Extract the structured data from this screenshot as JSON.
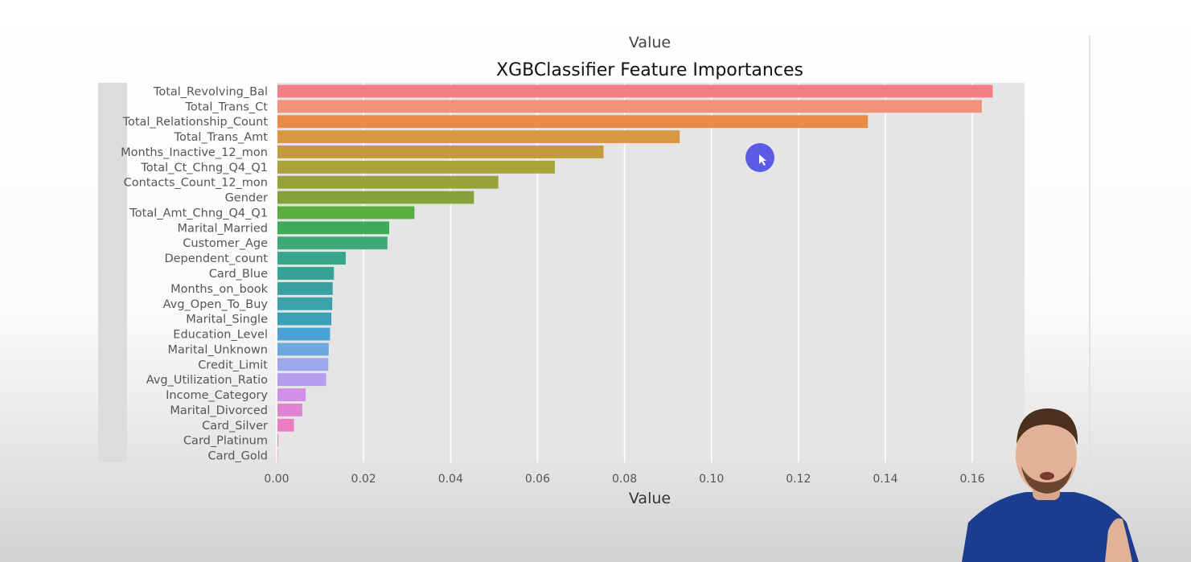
{
  "chart_data": {
    "type": "bar",
    "orientation": "horizontal",
    "top_label": "Value",
    "title": "XGBClassifier Feature Importances",
    "xlabel": "Value",
    "ylabel": "",
    "xlim": [
      0,
      0.172
    ],
    "xticks": [
      0.0,
      0.02,
      0.04,
      0.06,
      0.08,
      0.1,
      0.12,
      0.14,
      0.16
    ],
    "xtick_labels": [
      "0.00",
      "0.02",
      "0.04",
      "0.06",
      "0.08",
      "0.10",
      "0.12",
      "0.14",
      "0.16"
    ],
    "grid": true,
    "categories": [
      "Total_Revolving_Bal",
      "Total_Trans_Ct",
      "Total_Relationship_Count",
      "Total_Trans_Amt",
      "Months_Inactive_12_mon",
      "Total_Ct_Chng_Q4_Q1",
      "Contacts_Count_12_mon",
      "Gender",
      "Total_Amt_Chng_Q4_Q1",
      "Marital_Married",
      "Customer_Age",
      "Dependent_count",
      "Card_Blue",
      "Months_on_book",
      "Avg_Open_To_Buy",
      "Marital_Single",
      "Education_Level",
      "Marital_Unknown",
      "Credit_Limit",
      "Avg_Utilization_Ratio",
      "Income_Category",
      "Marital_Divorced",
      "Card_Silver",
      "Card_Platinum",
      "Card_Gold"
    ],
    "values": [
      0.1645,
      0.162,
      0.1358,
      0.0925,
      0.075,
      0.0638,
      0.0508,
      0.0452,
      0.0315,
      0.0257,
      0.0253,
      0.0157,
      0.013,
      0.0127,
      0.0126,
      0.0124,
      0.0121,
      0.0118,
      0.0117,
      0.0112,
      0.0065,
      0.0057,
      0.0038,
      0.0002,
      0.0001
    ],
    "colors": [
      "#f37e87",
      "#f3927a",
      "#e98a45",
      "#d7983f",
      "#c39b3b",
      "#a9a33a",
      "#98a23a",
      "#86a33a",
      "#58ad3f",
      "#3fab5a",
      "#3ea977",
      "#38a68a",
      "#37a397",
      "#38a2a2",
      "#39a2ab",
      "#3aa0b8",
      "#49a3d6",
      "#6fa7e0",
      "#9aa9ec",
      "#b79ded",
      "#d38ee7",
      "#e283d8",
      "#ef7bc7",
      "#f47bb4",
      "#f582a6"
    ]
  },
  "cursor": {
    "color": "#5b5be6"
  }
}
